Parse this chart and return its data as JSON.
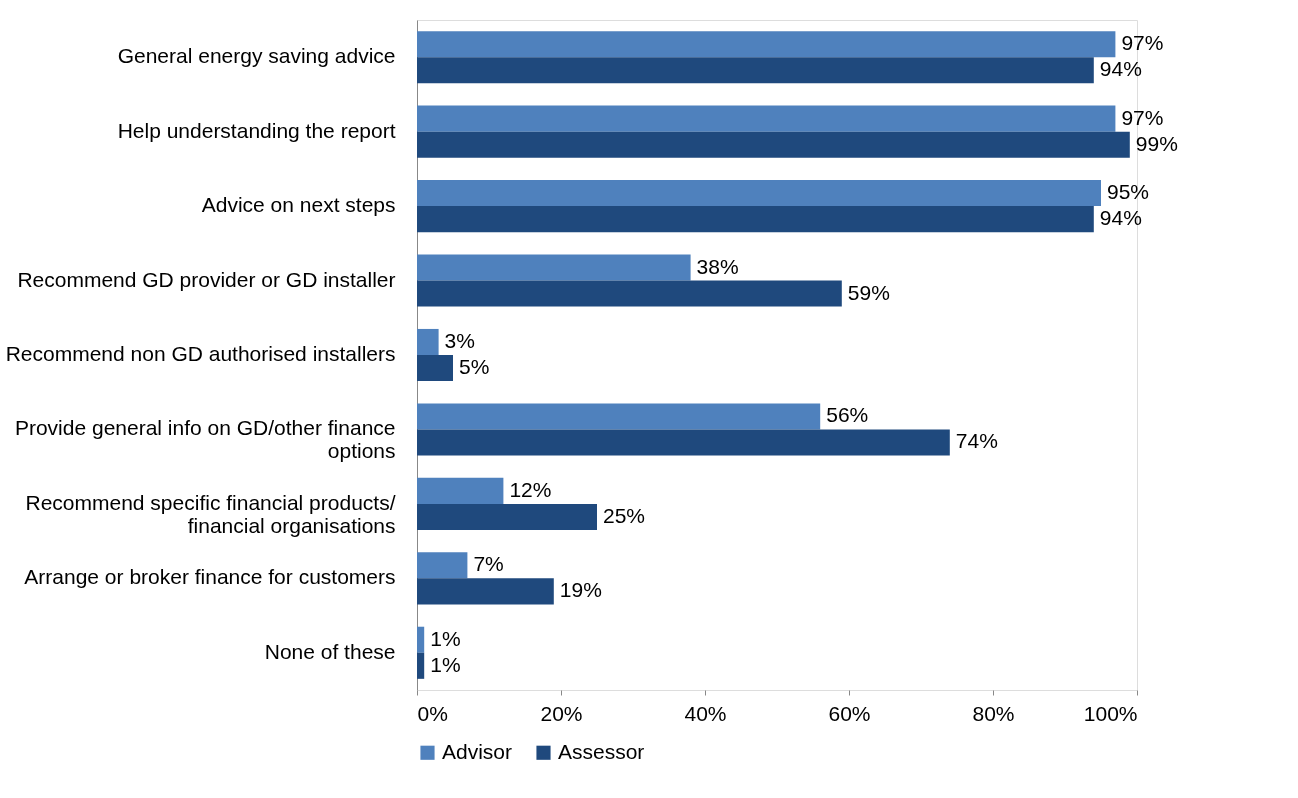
{
  "chart_data": {
    "type": "bar",
    "orientation": "horizontal",
    "categories": [
      "General energy saving advice",
      "Help understanding the report",
      "Advice on next steps",
      "Recommend GD provider or GD installer",
      "Recommend non GD authorised installers",
      "Provide general info on GD/other finance options",
      "Recommend specific financial products/ financial organisations",
      "Arrange or broker finance for customers",
      "None of these"
    ],
    "series": [
      {
        "name": "Advisor",
        "color": "#4f81bd",
        "values": [
          97,
          97,
          95,
          38,
          3,
          56,
          12,
          7,
          1
        ],
        "value_labels": [
          "97%",
          "97%",
          "95%",
          "38%",
          "3%",
          "56%",
          "12%",
          "7%",
          "1%"
        ]
      },
      {
        "name": "Assessor",
        "color": "#1f497d",
        "values": [
          94,
          99,
          94,
          59,
          5,
          74,
          25,
          19,
          1
        ],
        "value_labels": [
          "94%",
          "99%",
          "94%",
          "59%",
          "5%",
          "74%",
          "25%",
          "19%",
          "1%"
        ]
      }
    ],
    "xlim": [
      0,
      100
    ],
    "xticks": [
      {
        "value": 0,
        "label": "0%"
      },
      {
        "value": 20,
        "label": "20%"
      },
      {
        "value": 40,
        "label": "40%"
      },
      {
        "value": 60,
        "label": "60%"
      },
      {
        "value": 80,
        "label": "80%"
      },
      {
        "value": 100,
        "label": "100%"
      }
    ],
    "grid": false,
    "legend": "bottom"
  }
}
